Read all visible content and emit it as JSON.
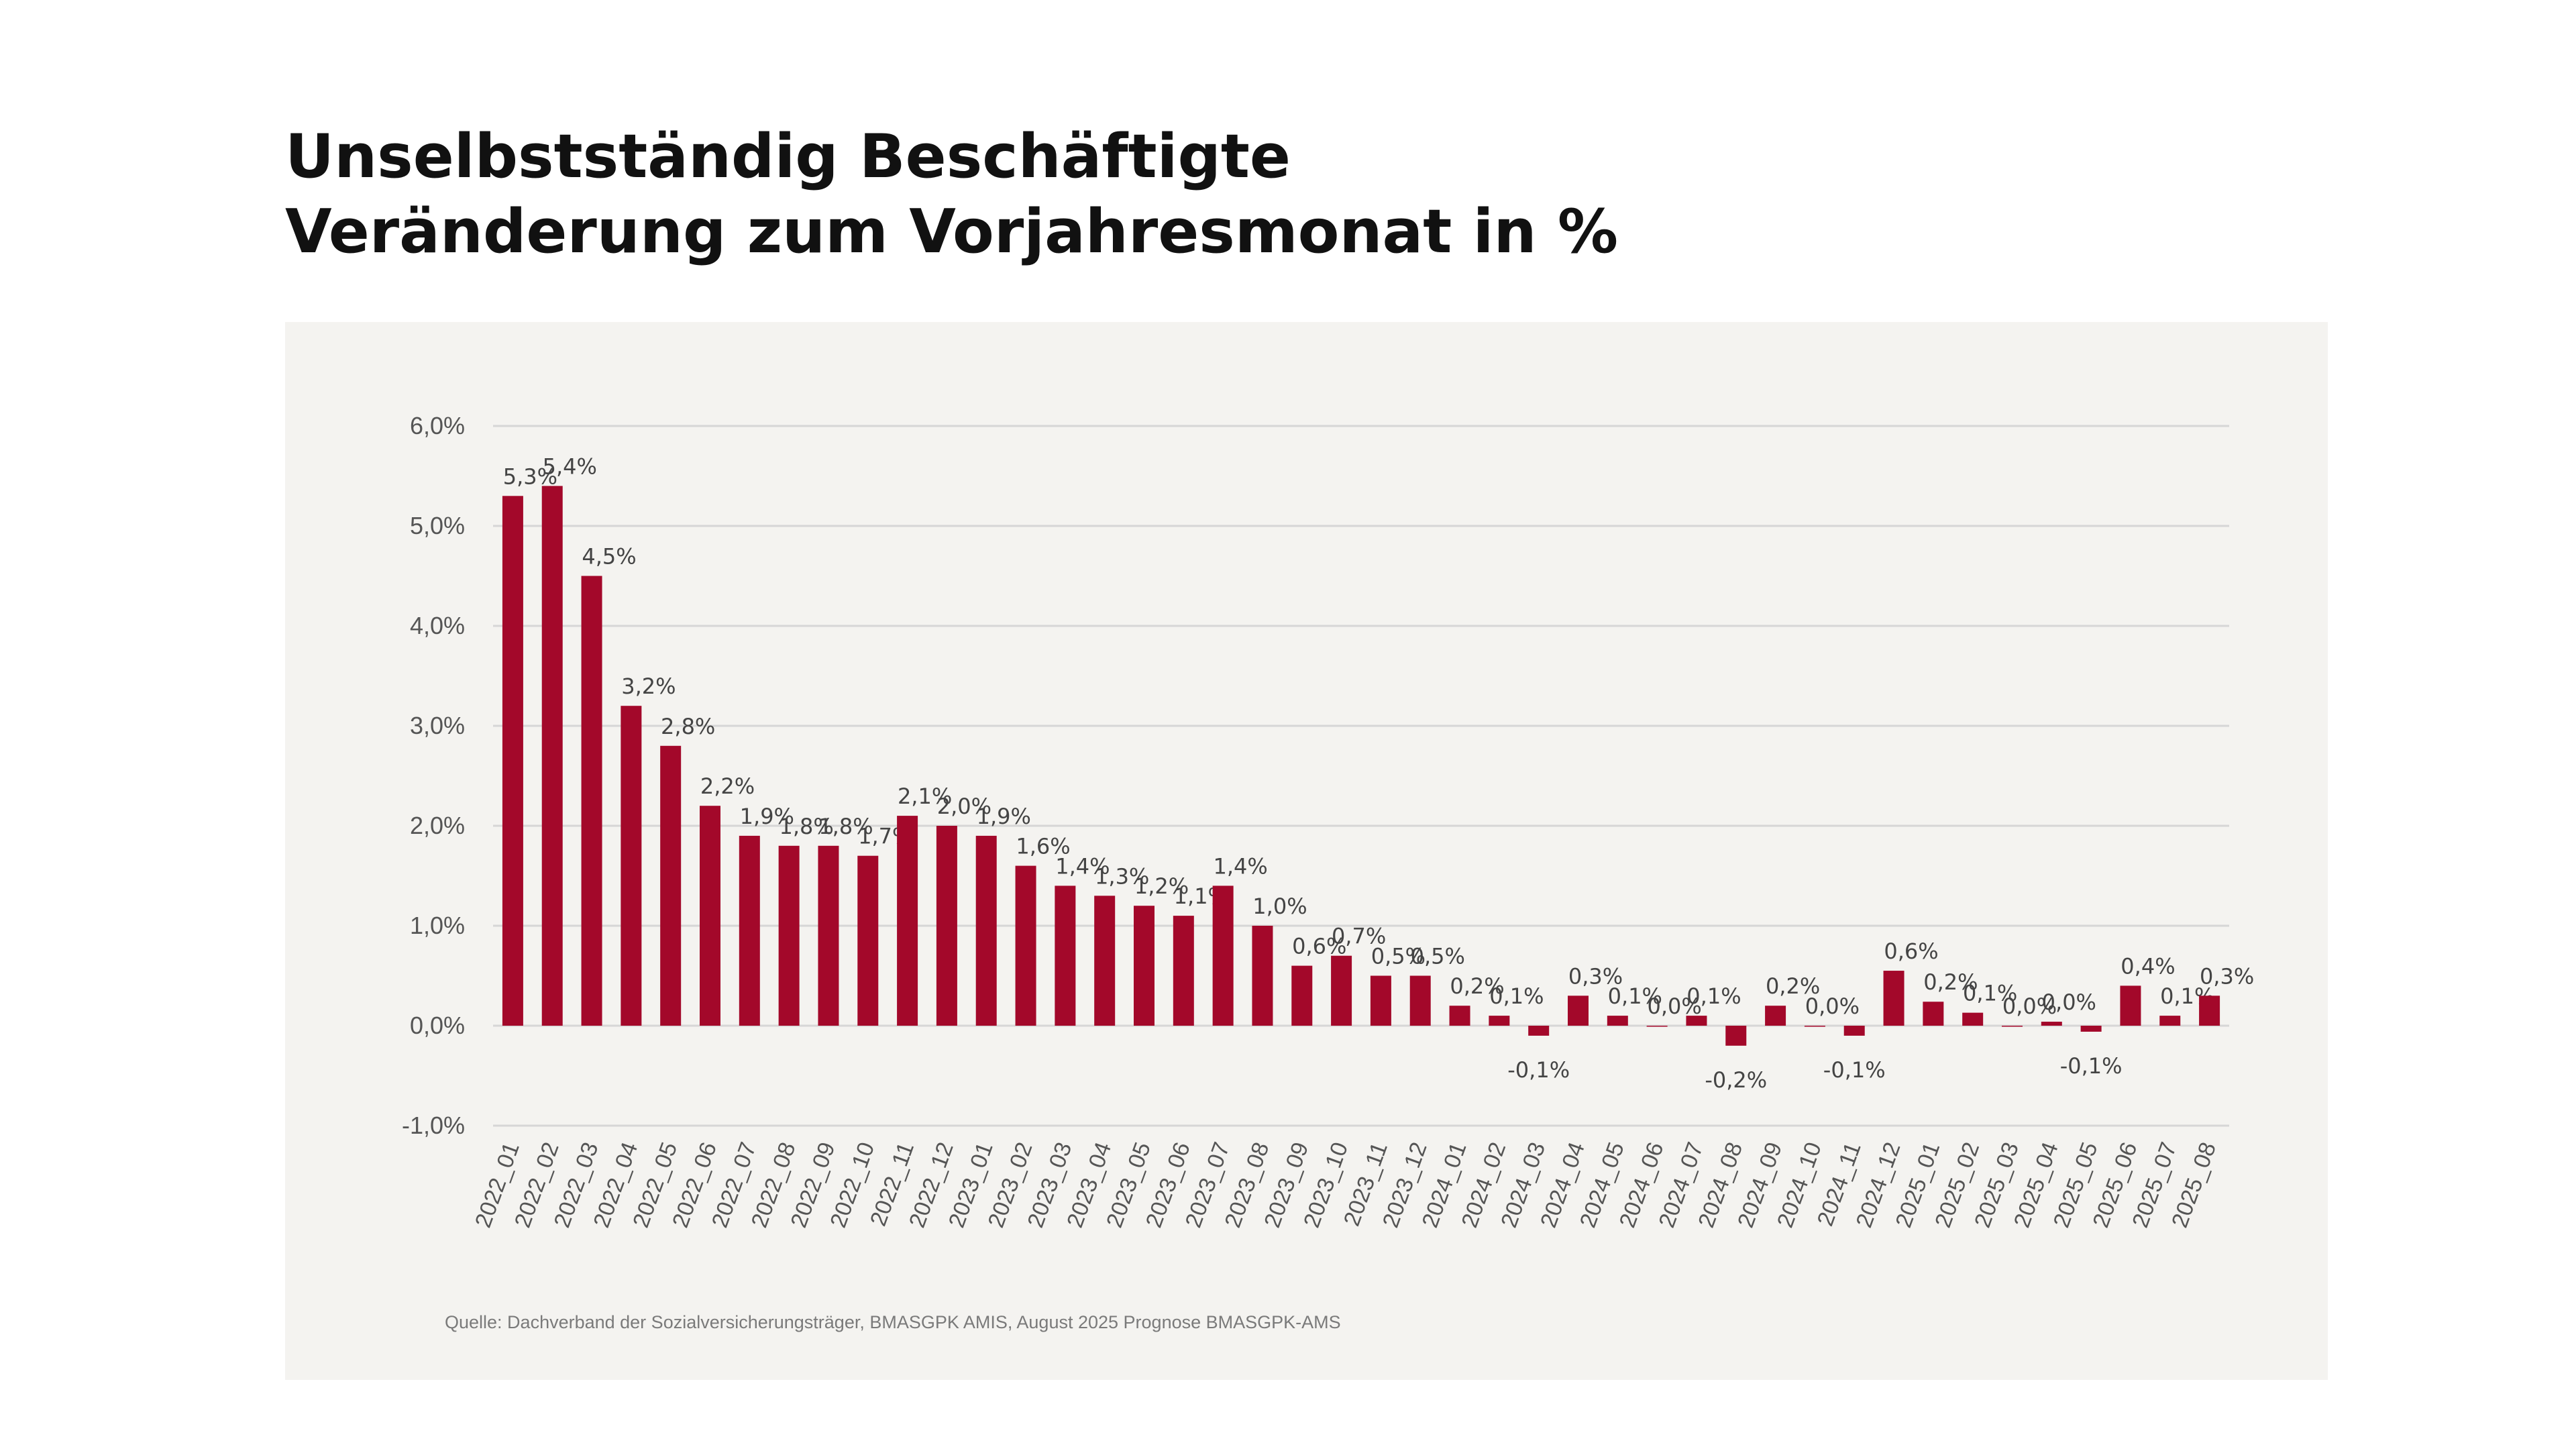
{
  "title": {
    "line1": "Unselbstständig Beschäftigte",
    "line2": "Veränderung zum Vorjahresmonat in %"
  },
  "source": "Quelle: Dachverband der Sozialversicherungsträger, BMASGPK AMIS, August 2025 Prognose BMASGPK-AMS",
  "colors": {
    "bar": "#a3082a",
    "grid": "#d6d6d6",
    "text": "#444444",
    "panel": "#f4f3f0"
  },
  "chart_data": {
    "type": "bar",
    "title": "",
    "xlabel": "",
    "ylabel": "",
    "ylim": [
      -1.0,
      6.0
    ],
    "y_ticks": [
      "-1,0%",
      "0,0%",
      "1,0%",
      "2,0%",
      "3,0%",
      "4,0%",
      "5,0%",
      "6,0%"
    ],
    "y_tick_values": [
      -1,
      0,
      1,
      2,
      3,
      4,
      5,
      6
    ],
    "grid": true,
    "legend": "none",
    "categories": [
      "2022_01",
      "2022_02",
      "2022_03",
      "2022_04",
      "2022_05",
      "2022_06",
      "2022_07",
      "2022_08",
      "2022_09",
      "2022_10",
      "2022_11",
      "2022_12",
      "2023_01",
      "2023_02",
      "2023_03",
      "2023_04",
      "2023_05",
      "2023_06",
      "2023_07",
      "2023_08",
      "2023_09",
      "2023_10",
      "2023_11",
      "2023_12",
      "2024_01",
      "2024_02",
      "2024_03",
      "2024_04",
      "2024_05",
      "2024_06",
      "2024_07",
      "2024_08",
      "2024_09",
      "2024_10",
      "2024_11",
      "2024_12",
      "2025_01",
      "2025_02",
      "2025_03",
      "2025_04",
      "2025_05",
      "2025_06",
      "2025_07",
      "2025_08"
    ],
    "values": [
      5.3,
      5.4,
      4.5,
      3.2,
      2.8,
      2.2,
      1.9,
      1.8,
      1.8,
      1.7,
      2.1,
      2.0,
      1.9,
      1.6,
      1.4,
      1.3,
      1.2,
      1.1,
      1.4,
      1.0,
      0.6,
      0.7,
      0.5,
      0.5,
      0.2,
      0.1,
      -0.1,
      0.3,
      0.1,
      0.0,
      0.1,
      -0.2,
      0.2,
      0.0,
      -0.1,
      0.55,
      0.24,
      0.13,
      0.0,
      0.04,
      -0.06,
      0.4,
      0.1,
      0.3
    ],
    "labels": [
      "5,3%",
      "5,4%",
      "4,5%",
      "3,2%",
      "2,8%",
      "2,2%",
      "1,9%",
      "1,8%",
      "1,8%",
      "1,7%",
      "2,1%",
      "2,0%",
      "1,9%",
      "1,6%",
      "1,4%",
      "1,3%",
      "1,2%",
      "1,1%",
      "1,4%",
      "1,0%",
      "0,6%",
      "0,7%",
      "0,5%",
      "0,5%",
      "0,2%",
      "0,1%",
      "-0,1%",
      "0,3%",
      "0,1%",
      "0,0%",
      "0,1%",
      "-0,2%",
      "0,2%",
      "0,0%",
      "-0,1%",
      "0,6%",
      "0,2%",
      "0,1%",
      "0,0%",
      "0,0%",
      "-0,1%",
      "0,4%",
      "0,1%",
      "0,3%"
    ]
  }
}
